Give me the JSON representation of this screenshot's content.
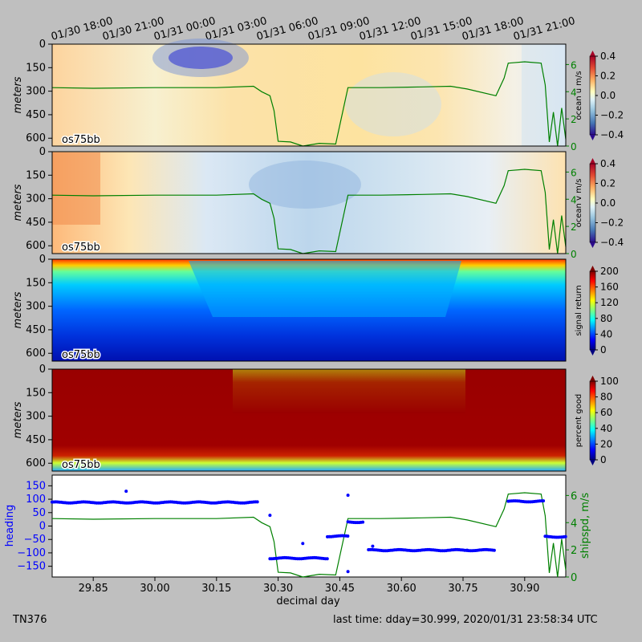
{
  "figure": {
    "cruise": "TN376",
    "last_time": "last time: dday=30.999,  2020/01/31 23:58:34 UTC",
    "instrument_label": "os75bb",
    "colors": {
      "background": "#bfbfbf",
      "ship_speed_line": "#008000",
      "heading_points": "#0000ff"
    }
  },
  "chart_data": [
    {
      "type": "heatmap",
      "panel": "ocean-u",
      "ylabel": "meters",
      "yticks": [
        0,
        150,
        300,
        450,
        600
      ],
      "colorbar_label": "ocean u m/s",
      "colorbar_ticks": [
        "0.4",
        "0.2",
        "0.0",
        "−0.2",
        "−0.4"
      ],
      "clim": [
        -0.4,
        0.4
      ],
      "colormap": "RdYlBu_r",
      "right_axis_ticks": [
        "6",
        "4",
        "2",
        "0"
      ],
      "top_axis_ticks": [
        "01/30 18:00",
        "01/30 21:00",
        "01/31 00:00",
        "01/31 03:00",
        "01/31 06:00",
        "01/31 09:00",
        "01/31 12:00",
        "01/31 15:00",
        "01/31 18:00",
        "01/31 21:00"
      ]
    },
    {
      "type": "heatmap",
      "panel": "ocean-v",
      "ylabel": "meters",
      "yticks": [
        0,
        150,
        300,
        450,
        600
      ],
      "colorbar_label": "ocean v m/s",
      "colorbar_ticks": [
        "0.4",
        "0.2",
        "0.0",
        "−0.2",
        "−0.4"
      ],
      "clim": [
        -0.4,
        0.4
      ],
      "colormap": "RdYlBu_r",
      "right_axis_ticks": [
        "6",
        "4",
        "2",
        "0"
      ]
    },
    {
      "type": "heatmap",
      "panel": "signal-return",
      "ylabel": "meters",
      "yticks": [
        0,
        150,
        300,
        450,
        600
      ],
      "colorbar_label": "signal return",
      "colorbar_ticks": [
        "200",
        "160",
        "120",
        "80",
        "40",
        "0"
      ],
      "clim": [
        0,
        200
      ],
      "colormap": "jet"
    },
    {
      "type": "heatmap",
      "panel": "percent-good",
      "ylabel": "meters",
      "yticks": [
        0,
        150,
        300,
        450,
        600
      ],
      "colorbar_label": "percent good",
      "colorbar_ticks": [
        "100",
        "80",
        "60",
        "40",
        "20",
        "0"
      ],
      "clim": [
        0,
        100
      ],
      "colormap": "jet"
    },
    {
      "type": "scatter",
      "panel": "heading-shipspd",
      "xlabel": "decimal day",
      "ylabel": "heading",
      "y2label": "shipspd, m/s",
      "xlim": [
        29.75,
        31.0
      ],
      "ylim": [
        -190,
        190
      ],
      "y2lim": [
        0,
        7.5
      ],
      "xticks": [
        "29.85",
        "30.00",
        "30.15",
        "30.30",
        "30.45",
        "30.60",
        "30.75",
        "30.90"
      ],
      "yticks": [
        "150",
        "100",
        "50",
        "0",
        "−50",
        "−100",
        "−150"
      ],
      "y2ticks": [
        "6",
        "4",
        "2",
        "0"
      ],
      "heading_segments": [
        {
          "x0": 29.75,
          "x1": 30.25,
          "y": 88
        },
        {
          "x0": 30.28,
          "x1": 30.42,
          "y": -120
        },
        {
          "x0": 30.42,
          "x1": 30.47,
          "y": -38
        },
        {
          "x0": 30.47,
          "x1": 30.51,
          "y": 15
        },
        {
          "x0": 30.52,
          "x1": 30.83,
          "y": -90
        },
        {
          "x0": 30.86,
          "x1": 30.95,
          "y": 92
        },
        {
          "x0": 30.95,
          "x1": 31.0,
          "y": -40
        }
      ],
      "heading_outliers": [
        {
          "x": 29.93,
          "y": 130
        },
        {
          "x": 30.28,
          "y": 40
        },
        {
          "x": 30.36,
          "y": -65
        },
        {
          "x": 30.47,
          "y": 115
        },
        {
          "x": 30.47,
          "y": -170
        },
        {
          "x": 30.53,
          "y": -75
        },
        {
          "x": 30.76,
          "y": -90
        }
      ],
      "ship_speed": [
        {
          "x": 29.75,
          "y": 4.3
        },
        {
          "x": 29.85,
          "y": 4.25
        },
        {
          "x": 30.0,
          "y": 4.3
        },
        {
          "x": 30.15,
          "y": 4.3
        },
        {
          "x": 30.24,
          "y": 4.4
        },
        {
          "x": 30.26,
          "y": 4.0
        },
        {
          "x": 30.28,
          "y": 3.7
        },
        {
          "x": 30.29,
          "y": 2.6
        },
        {
          "x": 30.3,
          "y": 0.35
        },
        {
          "x": 30.33,
          "y": 0.3
        },
        {
          "x": 30.36,
          "y": 0.0
        },
        {
          "x": 30.4,
          "y": 0.2
        },
        {
          "x": 30.44,
          "y": 0.15
        },
        {
          "x": 30.47,
          "y": 4.3
        },
        {
          "x": 30.55,
          "y": 4.3
        },
        {
          "x": 30.65,
          "y": 4.35
        },
        {
          "x": 30.72,
          "y": 4.4
        },
        {
          "x": 30.76,
          "y": 4.2
        },
        {
          "x": 30.83,
          "y": 3.7
        },
        {
          "x": 30.85,
          "y": 5.0
        },
        {
          "x": 30.86,
          "y": 6.1
        },
        {
          "x": 30.9,
          "y": 6.2
        },
        {
          "x": 30.94,
          "y": 6.1
        },
        {
          "x": 30.95,
          "y": 4.5
        },
        {
          "x": 30.96,
          "y": 0.3
        },
        {
          "x": 30.97,
          "y": 2.5
        },
        {
          "x": 30.98,
          "y": 0.0
        },
        {
          "x": 30.99,
          "y": 2.8
        },
        {
          "x": 31.0,
          "y": 0.5
        }
      ]
    }
  ]
}
